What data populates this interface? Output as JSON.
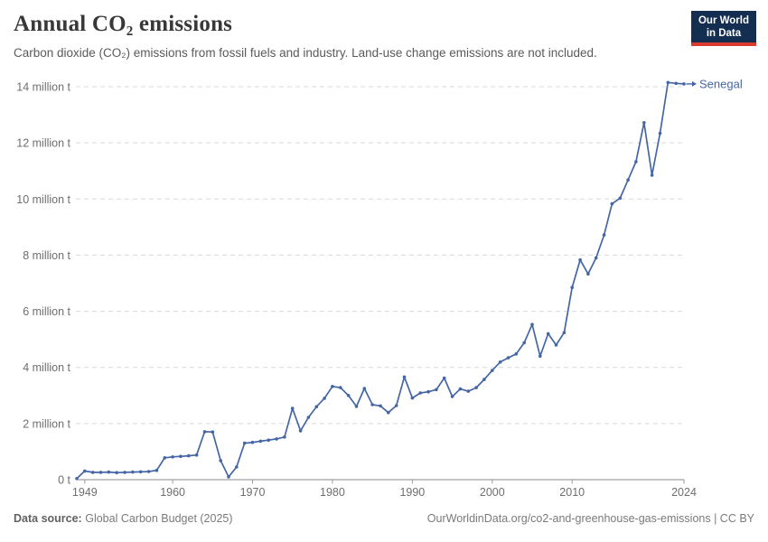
{
  "header": {
    "title": "Annual CO₂ emissions",
    "subtitle": "Carbon dioxide (CO₂) emissions from fossil fuels and industry. Land-use change emissions are not included."
  },
  "logo": {
    "line1": "Our World",
    "line2": "in Data",
    "bg_color": "#132E51",
    "accent_color": "#D93A2D"
  },
  "chart_data": {
    "type": "line",
    "title": "Annual CO₂ emissions",
    "entity_label": "Senegal",
    "ylabel": "",
    "xlabel": "",
    "unit": "t",
    "ylim": [
      0,
      14.35
    ],
    "xlim": [
      1948,
      2024
    ],
    "grid": true,
    "legend_position": "end-of-line",
    "line_color": "#4566A5",
    "grid_color": "#D9D9D9",
    "axis_color": "#8A8A8A",
    "tick_label_color": "#6E6E6E",
    "x": [
      1948,
      1949,
      1950,
      1951,
      1952,
      1953,
      1954,
      1955,
      1956,
      1957,
      1958,
      1959,
      1960,
      1961,
      1962,
      1963,
      1964,
      1965,
      1966,
      1967,
      1968,
      1969,
      1970,
      1971,
      1972,
      1973,
      1974,
      1975,
      1976,
      1977,
      1978,
      1979,
      1980,
      1981,
      1982,
      1983,
      1984,
      1985,
      1986,
      1987,
      1988,
      1989,
      1990,
      1991,
      1992,
      1993,
      1994,
      1995,
      1996,
      1997,
      1998,
      1999,
      2000,
      2001,
      2002,
      2003,
      2004,
      2005,
      2006,
      2007,
      2008,
      2009,
      2010,
      2011,
      2012,
      2013,
      2014,
      2015,
      2016,
      2017,
      2018,
      2019,
      2020,
      2021,
      2022,
      2023,
      2024
    ],
    "series": [
      {
        "name": "Senegal",
        "values": [
          0.04,
          0.31,
          0.26,
          0.26,
          0.27,
          0.25,
          0.26,
          0.27,
          0.28,
          0.29,
          0.33,
          0.78,
          0.81,
          0.83,
          0.85,
          0.88,
          1.71,
          1.7,
          0.68,
          0.1,
          0.45,
          1.3,
          1.33,
          1.37,
          1.41,
          1.45,
          1.52,
          2.54,
          1.74,
          2.22,
          2.6,
          2.9,
          3.32,
          3.28,
          3.0,
          2.61,
          3.25,
          2.67,
          2.63,
          2.39,
          2.64,
          3.66,
          2.91,
          3.09,
          3.13,
          3.21,
          3.62,
          2.96,
          3.23,
          3.15,
          3.28,
          3.57,
          3.89,
          4.19,
          4.34,
          4.48,
          4.88,
          5.53,
          4.4,
          5.2,
          4.8,
          5.24,
          6.85,
          7.83,
          7.33,
          7.9,
          8.72,
          9.83,
          10.03,
          10.68,
          11.33,
          12.72,
          10.85,
          12.34,
          14.15,
          14.12,
          14.1
        ]
      }
    ],
    "yticks": [
      {
        "value": 0,
        "label": "0 t"
      },
      {
        "value": 2,
        "label": "2 million t"
      },
      {
        "value": 4,
        "label": "4 million t"
      },
      {
        "value": 6,
        "label": "6 million t"
      },
      {
        "value": 8,
        "label": "8 million t"
      },
      {
        "value": 10,
        "label": "10 million t"
      },
      {
        "value": 12,
        "label": "12 million t"
      },
      {
        "value": 14,
        "label": "14 million t"
      }
    ],
    "xticks": [
      {
        "value": 1949,
        "label": "1949"
      },
      {
        "value": 1960,
        "label": "1960"
      },
      {
        "value": 1970,
        "label": "1970"
      },
      {
        "value": 1980,
        "label": "1980"
      },
      {
        "value": 1990,
        "label": "1990"
      },
      {
        "value": 2000,
        "label": "2000"
      },
      {
        "value": 2010,
        "label": "2010"
      },
      {
        "value": 2024,
        "label": "2024"
      }
    ]
  },
  "footer": {
    "source_label": "Data source:",
    "source_value": "Global Carbon Budget (2025)",
    "credit": "OurWorldinData.org/co2-and-greenhouse-gas-emissions | CC BY"
  }
}
